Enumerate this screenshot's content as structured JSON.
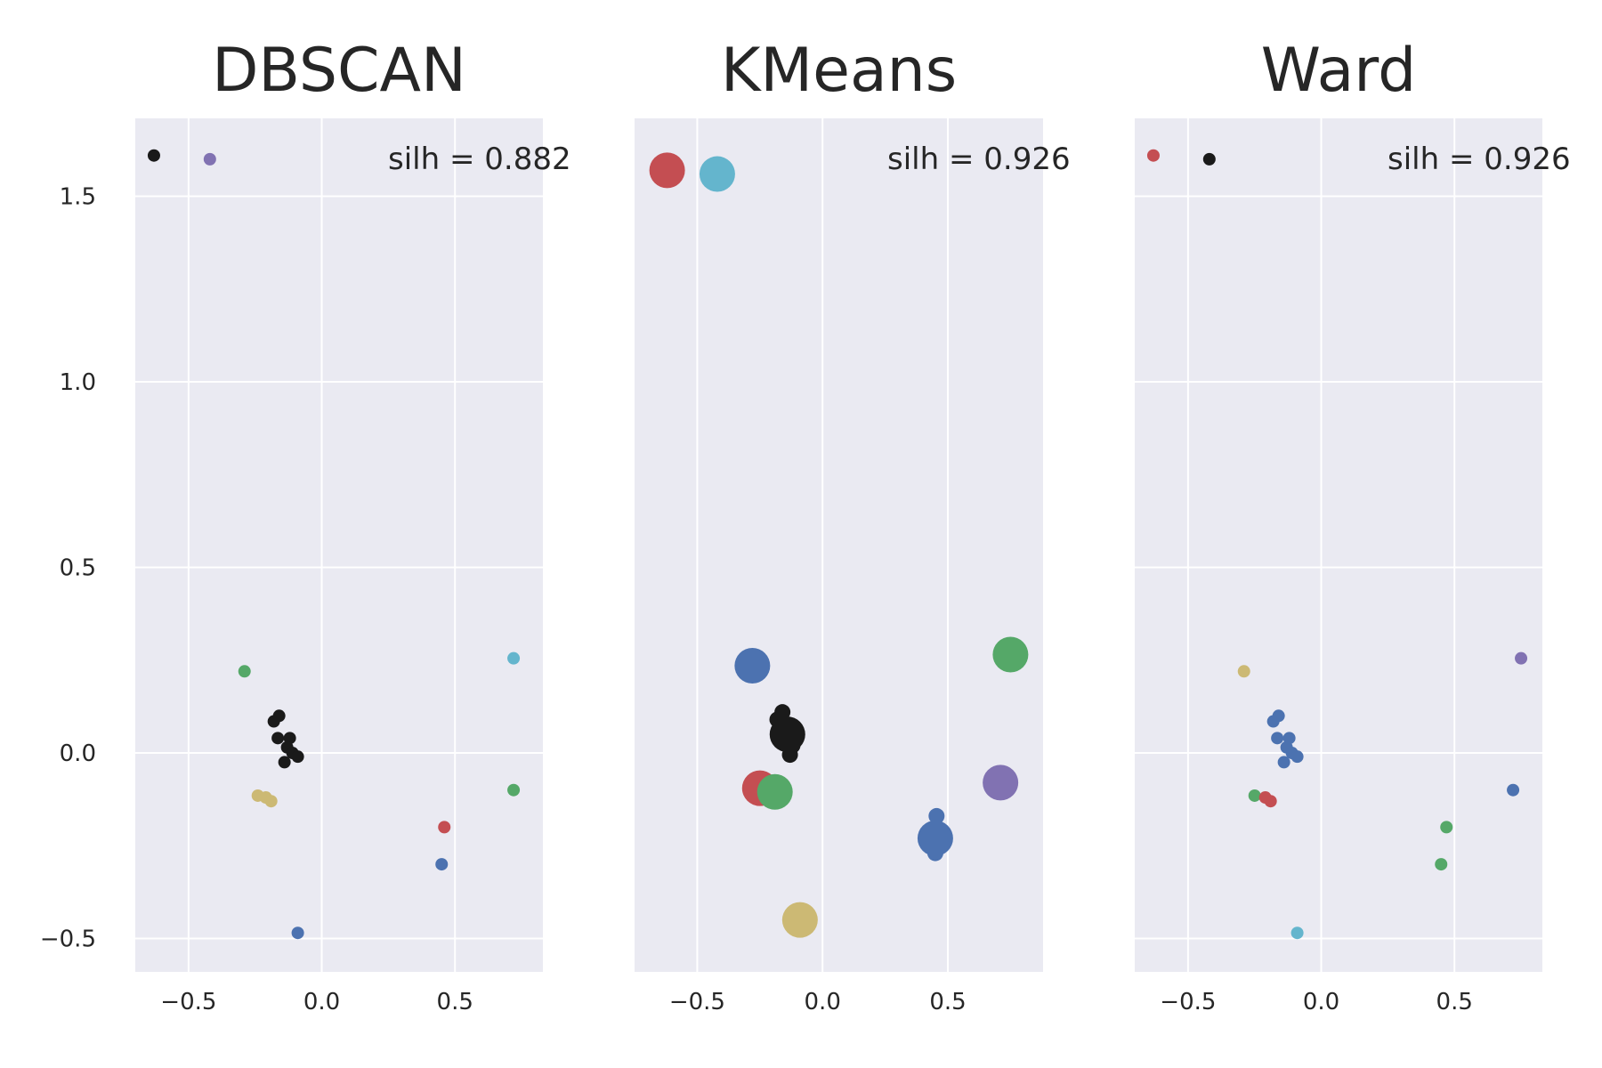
{
  "colors": {
    "background": "#eaeaf2",
    "grid": "#ffffff",
    "b": "#4c72b0",
    "g": "#55a868",
    "r": "#c44e52",
    "m": "#8172b2",
    "y": "#ccb974",
    "c": "#64b5cd",
    "k": "#1a1a1a"
  },
  "chart_data": [
    {
      "type": "scatter",
      "title": "DBSCAN",
      "annotation": "silh = 0.882",
      "xlim": [
        -0.7,
        0.83
      ],
      "ylim": [
        -0.59,
        1.71
      ],
      "xticks": [
        -0.5,
        0.0,
        0.5
      ],
      "xticklabels": [
        "−0.5",
        "0.0",
        "0.5"
      ],
      "yticks": [
        -0.5,
        0.0,
        0.5,
        1.0,
        1.5
      ],
      "yticklabels": [
        "−0.5",
        "0.0",
        "0.5",
        "1.0",
        "1.5"
      ],
      "grid": true,
      "points": [
        {
          "x": -0.63,
          "y": 1.61,
          "color": "k",
          "size": 7
        },
        {
          "x": -0.42,
          "y": 1.6,
          "color": "m",
          "size": 7
        },
        {
          "x": -0.29,
          "y": 0.22,
          "color": "g",
          "size": 7
        },
        {
          "x": 0.72,
          "y": 0.255,
          "color": "c",
          "size": 7
        },
        {
          "x": -0.18,
          "y": 0.085,
          "color": "k",
          "size": 7
        },
        {
          "x": -0.16,
          "y": 0.1,
          "color": "k",
          "size": 7
        },
        {
          "x": -0.165,
          "y": 0.04,
          "color": "k",
          "size": 7
        },
        {
          "x": -0.12,
          "y": 0.04,
          "color": "k",
          "size": 7
        },
        {
          "x": -0.13,
          "y": 0.015,
          "color": "k",
          "size": 7
        },
        {
          "x": -0.11,
          "y": 0.0,
          "color": "k",
          "size": 7
        },
        {
          "x": -0.09,
          "y": -0.01,
          "color": "k",
          "size": 7
        },
        {
          "x": -0.14,
          "y": -0.025,
          "color": "k",
          "size": 7
        },
        {
          "x": -0.24,
          "y": -0.115,
          "color": "y",
          "size": 7
        },
        {
          "x": -0.21,
          "y": -0.12,
          "color": "y",
          "size": 7
        },
        {
          "x": -0.19,
          "y": -0.13,
          "color": "y",
          "size": 7
        },
        {
          "x": 0.72,
          "y": -0.1,
          "color": "g",
          "size": 7
        },
        {
          "x": 0.46,
          "y": -0.2,
          "color": "r",
          "size": 7
        },
        {
          "x": 0.45,
          "y": -0.3,
          "color": "b",
          "size": 7
        },
        {
          "x": -0.09,
          "y": -0.485,
          "color": "b",
          "size": 7
        }
      ]
    },
    {
      "type": "scatter",
      "title": "KMeans",
      "annotation": "silh = 0.926",
      "xlim": [
        -0.75,
        0.88
      ],
      "ylim": [
        -0.59,
        1.71
      ],
      "xticks": [
        -0.5,
        0.0,
        0.5
      ],
      "xticklabels": [
        "−0.5",
        "0.0",
        "0.5"
      ],
      "yticks": [
        -0.5,
        0.0,
        0.5,
        1.0,
        1.5
      ],
      "grid": true,
      "points": [
        {
          "x": -0.62,
          "y": 1.57,
          "color": "r",
          "size": 20
        },
        {
          "x": -0.42,
          "y": 1.56,
          "color": "c",
          "size": 20
        },
        {
          "x": -0.28,
          "y": 0.235,
          "color": "b",
          "size": 20
        },
        {
          "x": 0.75,
          "y": 0.265,
          "color": "g",
          "size": 20
        },
        {
          "x": -0.18,
          "y": 0.09,
          "color": "k",
          "size": 9
        },
        {
          "x": -0.16,
          "y": 0.11,
          "color": "k",
          "size": 9
        },
        {
          "x": -0.16,
          "y": 0.04,
          "color": "k",
          "size": 9
        },
        {
          "x": -0.12,
          "y": 0.02,
          "color": "k",
          "size": 9
        },
        {
          "x": -0.13,
          "y": -0.005,
          "color": "k",
          "size": 9
        },
        {
          "x": -0.14,
          "y": 0.05,
          "color": "k",
          "size": 20
        },
        {
          "x": -0.25,
          "y": -0.095,
          "color": "r",
          "size": 20
        },
        {
          "x": -0.19,
          "y": -0.105,
          "color": "g",
          "size": 20
        },
        {
          "x": 0.71,
          "y": -0.08,
          "color": "m",
          "size": 20
        },
        {
          "x": 0.455,
          "y": -0.17,
          "color": "b",
          "size": 9
        },
        {
          "x": 0.45,
          "y": -0.27,
          "color": "b",
          "size": 9
        },
        {
          "x": 0.45,
          "y": -0.23,
          "color": "b",
          "size": 20
        },
        {
          "x": -0.09,
          "y": -0.45,
          "color": "y",
          "size": 20
        }
      ]
    },
    {
      "type": "scatter",
      "title": "Ward",
      "annotation": "silh = 0.926",
      "xlim": [
        -0.7,
        0.83
      ],
      "ylim": [
        -0.59,
        1.71
      ],
      "xticks": [
        -0.5,
        0.0,
        0.5
      ],
      "xticklabels": [
        "−0.5",
        "0.0",
        "0.5"
      ],
      "yticks": [
        -0.5,
        0.0,
        0.5,
        1.0,
        1.5
      ],
      "grid": true,
      "points": [
        {
          "x": -0.63,
          "y": 1.61,
          "color": "r",
          "size": 7
        },
        {
          "x": -0.42,
          "y": 1.6,
          "color": "k",
          "size": 7
        },
        {
          "x": -0.29,
          "y": 0.22,
          "color": "y",
          "size": 7
        },
        {
          "x": 0.75,
          "y": 0.255,
          "color": "m",
          "size": 7
        },
        {
          "x": -0.18,
          "y": 0.085,
          "color": "b",
          "size": 7
        },
        {
          "x": -0.16,
          "y": 0.1,
          "color": "b",
          "size": 7
        },
        {
          "x": -0.165,
          "y": 0.04,
          "color": "b",
          "size": 7
        },
        {
          "x": -0.12,
          "y": 0.04,
          "color": "b",
          "size": 7
        },
        {
          "x": -0.13,
          "y": 0.015,
          "color": "b",
          "size": 7
        },
        {
          "x": -0.11,
          "y": 0.0,
          "color": "b",
          "size": 7
        },
        {
          "x": -0.09,
          "y": -0.01,
          "color": "b",
          "size": 7
        },
        {
          "x": -0.14,
          "y": -0.025,
          "color": "b",
          "size": 7
        },
        {
          "x": -0.25,
          "y": -0.115,
          "color": "g",
          "size": 7
        },
        {
          "x": -0.21,
          "y": -0.12,
          "color": "r",
          "size": 7
        },
        {
          "x": -0.19,
          "y": -0.13,
          "color": "r",
          "size": 7
        },
        {
          "x": 0.72,
          "y": -0.1,
          "color": "b",
          "size": 7
        },
        {
          "x": 0.47,
          "y": -0.2,
          "color": "g",
          "size": 7
        },
        {
          "x": 0.45,
          "y": -0.3,
          "color": "g",
          "size": 7
        },
        {
          "x": -0.09,
          "y": -0.485,
          "color": "c",
          "size": 7
        }
      ]
    }
  ]
}
